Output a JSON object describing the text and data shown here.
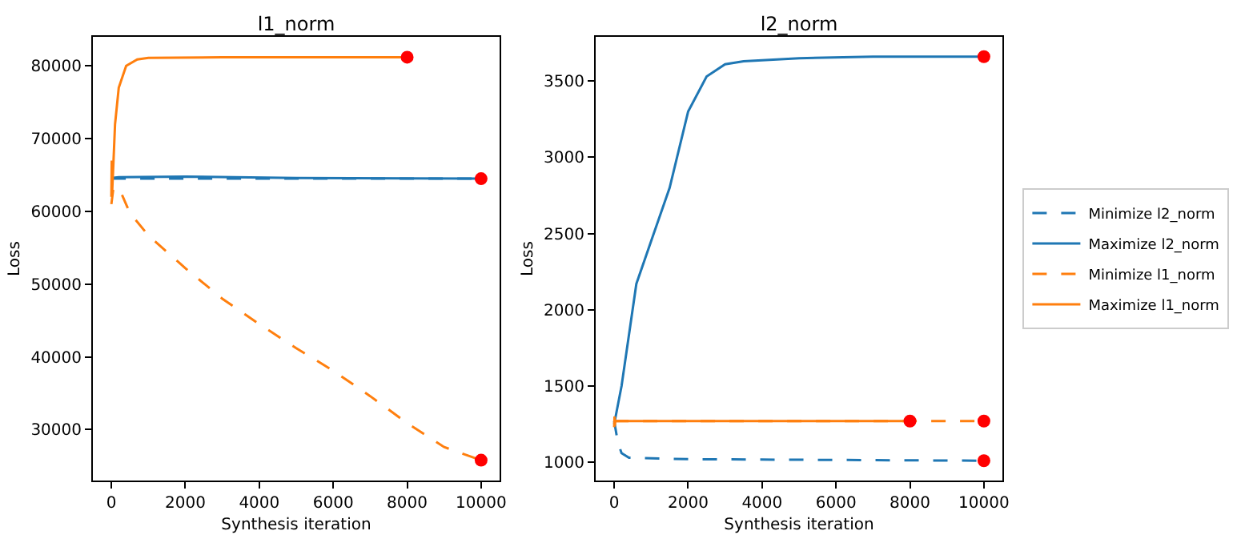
{
  "chart_data": [
    {
      "type": "line",
      "title": "l1_norm",
      "xlabel": "Synthesis iteration",
      "ylabel": "Loss",
      "xlim": [
        -500,
        10500
      ],
      "ylim": [
        23000,
        84000
      ],
      "xticks": [
        0,
        2000,
        4000,
        6000,
        8000,
        10000
      ],
      "yticks": [
        30000,
        40000,
        50000,
        60000,
        70000,
        80000
      ],
      "grid": false,
      "legend": false,
      "marker": "none",
      "series": [
        {
          "color": "#1f77b4",
          "line_style": "dashed",
          "x": [
            0,
            200,
            1000,
            5000,
            10000
          ],
          "values": [
            64500,
            64500,
            64500,
            64500,
            64500
          ]
        },
        {
          "color": "#1f77b4",
          "line_style": "solid",
          "x": [
            0,
            200,
            2000,
            5000,
            10000
          ],
          "values": [
            64600,
            64700,
            64800,
            64600,
            64500
          ]
        },
        {
          "color": "#ff7f0e",
          "line_style": "dashed",
          "x": [
            0,
            50,
            200,
            500,
            1000,
            2000,
            3000,
            4000,
            5000,
            6000,
            7000,
            8000,
            9000,
            10000
          ],
          "values": [
            61000,
            63000,
            63300,
            59800,
            56700,
            52200,
            48000,
            44500,
            41200,
            38100,
            34600,
            30900,
            27600,
            25800
          ]
        },
        {
          "color": "#ff7f0e",
          "line_style": "solid",
          "x": [
            0,
            10,
            20,
            50,
            100,
            200,
            400,
            700,
            1000,
            3000,
            8000
          ],
          "values": [
            62000,
            67000,
            62500,
            66000,
            72000,
            77000,
            80000,
            80900,
            81100,
            81200,
            81200
          ]
        },
        {
          "type": "scatter",
          "color": "#ff0000",
          "marker": "circle",
          "x": [
            8000,
            10000,
            10000
          ],
          "values": [
            81200,
            64500,
            25800
          ]
        }
      ]
    },
    {
      "type": "line",
      "title": "l2_norm",
      "xlabel": "Synthesis iteration",
      "ylabel": "Loss",
      "xlim": [
        -500,
        10500
      ],
      "ylim": [
        880,
        3790
      ],
      "xticks": [
        0,
        2000,
        4000,
        6000,
        8000,
        10000
      ],
      "yticks": [
        1000,
        1500,
        2000,
        2500,
        3000,
        3500
      ],
      "grid": false,
      "legend": "right",
      "marker": "none",
      "series": [
        {
          "name": "Minimize l2_norm",
          "color": "#1f77b4",
          "line_style": "dashed",
          "x": [
            0,
            100,
            200,
            400,
            2000,
            10000
          ],
          "values": [
            1270,
            1130,
            1060,
            1030,
            1020,
            1010
          ]
        },
        {
          "name": "Maximize l2_norm",
          "color": "#1f77b4",
          "line_style": "solid",
          "x": [
            0,
            200,
            600,
            1000,
            1500,
            2000,
            2500,
            3000,
            3500,
            5000,
            7000,
            10000
          ],
          "values": [
            1250,
            1500,
            2170,
            2450,
            2800,
            3300,
            3530,
            3610,
            3630,
            3650,
            3660,
            3660
          ]
        },
        {
          "name": "Minimize l1_norm",
          "color": "#ff7f0e",
          "line_style": "dashed",
          "x": [
            0,
            10000
          ],
          "values": [
            1270,
            1270
          ]
        },
        {
          "name": "Maximize l1_norm",
          "color": "#ff7f0e",
          "line_style": "solid",
          "x": [
            0,
            10,
            20,
            30,
            8000
          ],
          "values": [
            1230,
            1300,
            1240,
            1270,
            1270
          ]
        },
        {
          "type": "scatter",
          "color": "#ff0000",
          "marker": "circle",
          "x": [
            10000,
            8000,
            10000,
            10000
          ],
          "values": [
            3660,
            1270,
            1270,
            1010
          ]
        }
      ]
    }
  ]
}
